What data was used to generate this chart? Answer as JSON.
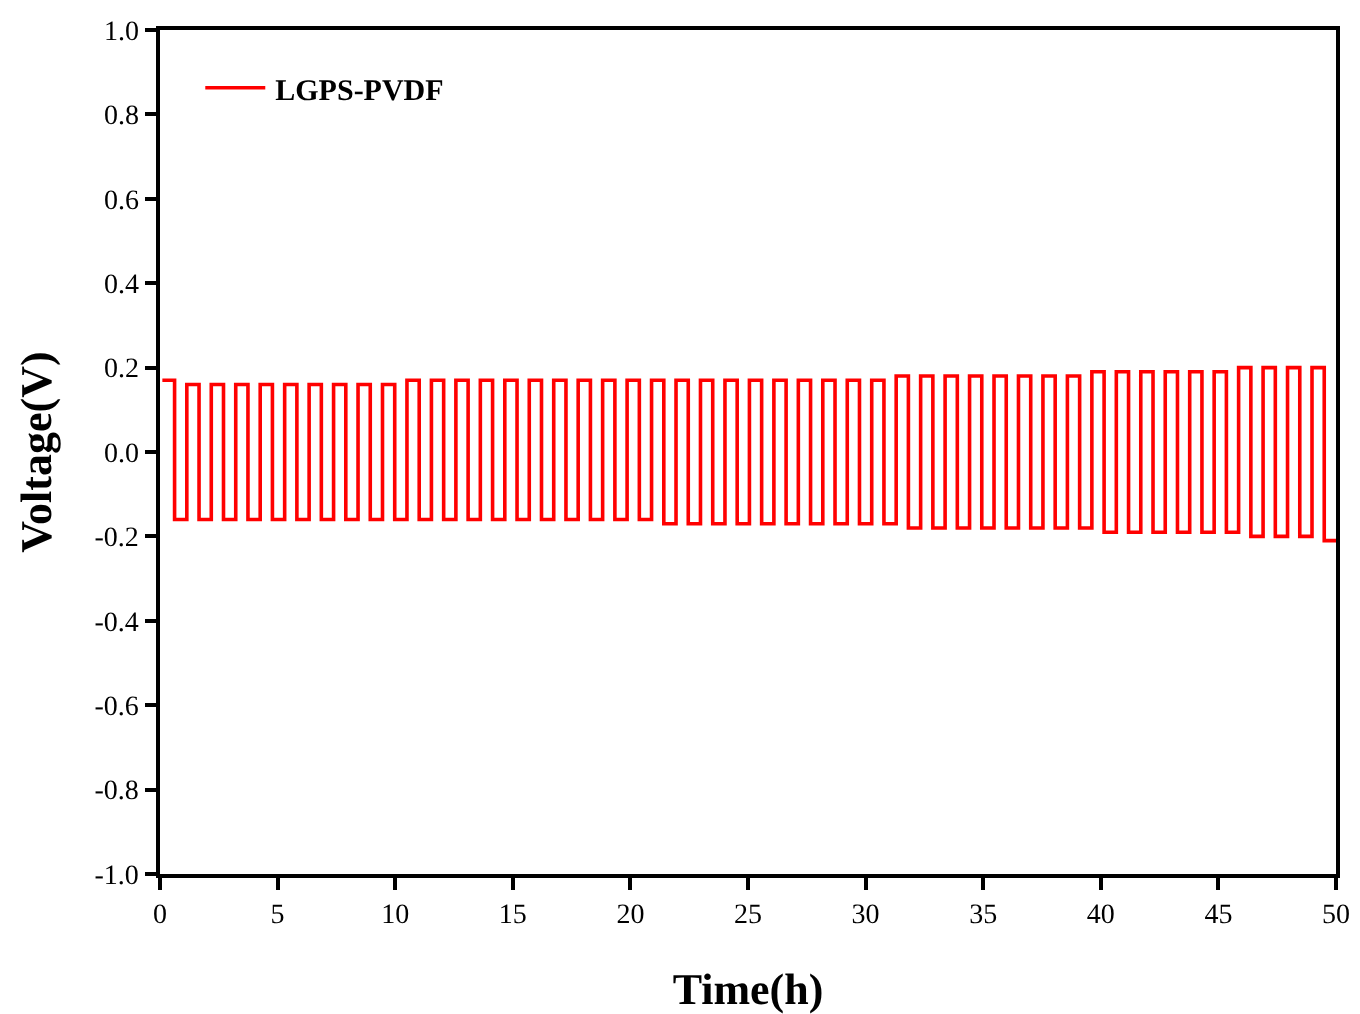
{
  "chart_data": {
    "type": "step",
    "xlabel": "Time(h)",
    "ylabel": "Voltage(V)",
    "xlim": [
      0,
      50
    ],
    "xticks": [
      0,
      5,
      10,
      15,
      20,
      25,
      30,
      35,
      40,
      45,
      50
    ],
    "ylim": [
      -1,
      1
    ],
    "yticks": [
      {
        "value": -1,
        "label": "-1.0"
      },
      -0.8,
      -0.6,
      -0.4,
      -0.2,
      {
        "value": 0,
        "label": "0.0"
      },
      0.2,
      0.4,
      0.6,
      0.8,
      {
        "value": 1,
        "label": "1.0"
      }
    ],
    "grid": false,
    "legend": "top left",
    "line_style": "solid",
    "marker": "none",
    "x": [
      0.1,
      0.62,
      1.14,
      1.66,
      2.18,
      2.7,
      3.22,
      3.74,
      4.26,
      4.78,
      5.3,
      5.82,
      6.34,
      6.86,
      7.38,
      7.9,
      8.42,
      8.94,
      9.46,
      9.98,
      10.5,
      11.02,
      11.54,
      12.06,
      12.58,
      13.1,
      13.62,
      14.14,
      14.66,
      15.18,
      15.7,
      16.22,
      16.74,
      17.26,
      17.78,
      18.3,
      18.82,
      19.34,
      19.86,
      20.38,
      20.9,
      21.42,
      21.94,
      22.46,
      22.98,
      23.5,
      24.02,
      24.54,
      25.06,
      25.58,
      26.1,
      26.62,
      27.14,
      27.66,
      28.18,
      28.7,
      29.22,
      29.74,
      30.26,
      30.78,
      31.3,
      31.82,
      32.34,
      32.86,
      33.38,
      33.9,
      34.42,
      34.94,
      35.46,
      35.98,
      36.5,
      37.02,
      37.54,
      38.06,
      38.58,
      39.1,
      39.62,
      40.14,
      40.66,
      41.18,
      41.7,
      42.22,
      42.74,
      43.26,
      43.78,
      44.3,
      44.82,
      45.34,
      45.86,
      46.38,
      46.9,
      47.42,
      47.94,
      48.46,
      48.98,
      49.5,
      50
    ],
    "series": [
      {
        "name": "LGPS-PVDF",
        "color": "#ff0000",
        "values": [
          0.17,
          -0.16,
          0.16,
          -0.16,
          0.16,
          -0.16,
          0.16,
          -0.16,
          0.16,
          -0.16,
          0.16,
          -0.16,
          0.16,
          -0.16,
          0.16,
          -0.16,
          0.16,
          -0.16,
          0.16,
          -0.16,
          0.17,
          -0.16,
          0.17,
          -0.16,
          0.17,
          -0.16,
          0.17,
          -0.16,
          0.17,
          -0.16,
          0.17,
          -0.16,
          0.17,
          -0.16,
          0.17,
          -0.16,
          0.17,
          -0.16,
          0.17,
          -0.16,
          0.17,
          -0.17,
          0.17,
          -0.17,
          0.17,
          -0.17,
          0.17,
          -0.17,
          0.17,
          -0.17,
          0.17,
          -0.17,
          0.17,
          -0.17,
          0.17,
          -0.17,
          0.17,
          -0.17,
          0.17,
          -0.17,
          0.18,
          -0.18,
          0.18,
          -0.18,
          0.18,
          -0.18,
          0.18,
          -0.18,
          0.18,
          -0.18,
          0.18,
          -0.18,
          0.18,
          -0.18,
          0.18,
          -0.18,
          0.19,
          -0.19,
          0.19,
          -0.19,
          0.19,
          -0.19,
          0.19,
          -0.19,
          0.19,
          -0.19,
          0.19,
          -0.19,
          0.2,
          -0.2,
          0.2,
          -0.2,
          0.2,
          -0.2,
          0.2,
          -0.21,
          -0.21
        ]
      }
    ]
  }
}
